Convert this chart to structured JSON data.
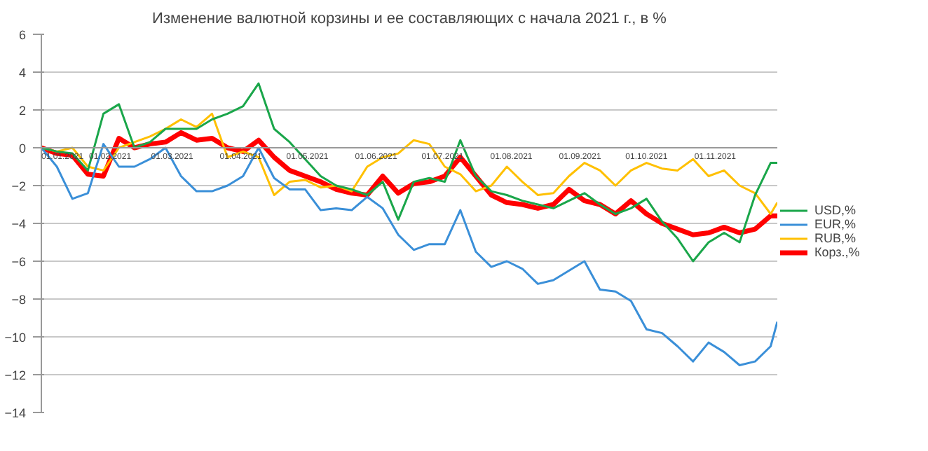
{
  "chart_data": {
    "type": "line",
    "title": "Изменение валютной корзины и ее составляющих с начала 2021 г., в %",
    "x": [
      "2021-01-01",
      "2021-01-08",
      "2021-01-15",
      "2021-01-22",
      "2021-01-29",
      "2021-02-05",
      "2021-02-12",
      "2021-02-19",
      "2021-02-26",
      "2021-03-05",
      "2021-03-12",
      "2021-03-19",
      "2021-03-26",
      "2021-04-02",
      "2021-04-09",
      "2021-04-16",
      "2021-04-23",
      "2021-04-30",
      "2021-05-07",
      "2021-05-14",
      "2021-05-21",
      "2021-05-28",
      "2021-06-04",
      "2021-06-11",
      "2021-06-18",
      "2021-06-25",
      "2021-07-02",
      "2021-07-09",
      "2021-07-16",
      "2021-07-23",
      "2021-07-30",
      "2021-08-06",
      "2021-08-13",
      "2021-08-20",
      "2021-08-27",
      "2021-09-03",
      "2021-09-10",
      "2021-09-17",
      "2021-09-24",
      "2021-10-01",
      "2021-10-08",
      "2021-10-15",
      "2021-10-22",
      "2021-10-29",
      "2021-11-05",
      "2021-11-12",
      "2021-11-19",
      "2021-11-26",
      "2021-11-29"
    ],
    "series": [
      {
        "name": "USD,%",
        "color": "#1aa64a",
        "values": [
          0,
          -0.2,
          -0.3,
          -1.2,
          1.8,
          2.3,
          0,
          0.3,
          1.0,
          1.0,
          1.0,
          1.5,
          1.8,
          2.2,
          3.4,
          1.0,
          0.3,
          -0.6,
          -1.5,
          -2.0,
          -2.2,
          -2.5,
          -1.8,
          -3.8,
          -1.8,
          -1.6,
          -1.8,
          0.4,
          -1.5,
          -2.3,
          -2.5,
          -2.8,
          -3.0,
          -3.2,
          -2.8,
          -2.4,
          -3.0,
          -3.5,
          -3.2,
          -2.7,
          -3.9,
          -4.8,
          -6.0,
          -5.0,
          -4.5,
          -5.0,
          -2.5,
          -0.8,
          -0.8
        ]
      },
      {
        "name": "EUR,%",
        "color": "#3a8fd8",
        "values": [
          0,
          -1.0,
          -2.7,
          -2.4,
          0.2,
          -1.0,
          -1.0,
          -0.6,
          0.0,
          -1.5,
          -2.3,
          -2.3,
          -2.0,
          -1.5,
          0.0,
          -1.6,
          -2.2,
          -2.2,
          -3.3,
          -3.2,
          -3.3,
          -2.6,
          -3.2,
          -4.6,
          -5.4,
          -5.1,
          -5.1,
          -3.3,
          -5.5,
          -6.3,
          -6.0,
          -6.4,
          -7.2,
          -7.0,
          -6.5,
          -6.0,
          -7.5,
          -7.6,
          -8.1,
          -9.6,
          -9.8,
          -10.5,
          -11.3,
          -10.3,
          -10.8,
          -11.5,
          -11.3,
          -10.5,
          -9.2
        ]
      },
      {
        "name": "RUB,%",
        "color": "#ffc000",
        "values": [
          0,
          -0.2,
          0,
          -1.0,
          -1.2,
          0.0,
          0.3,
          0.6,
          1.0,
          1.5,
          1.1,
          1.8,
          -0.5,
          -0.2,
          -0.5,
          -2.5,
          -1.8,
          -1.7,
          -2.1,
          -2.0,
          -2.3,
          -1.0,
          -0.5,
          -0.3,
          0.4,
          0.2,
          -1.0,
          -1.4,
          -2.3,
          -2.0,
          -1.0,
          -1.8,
          -2.5,
          -2.4,
          -1.5,
          -0.8,
          -1.2,
          -2.0,
          -1.2,
          -0.8,
          -1.1,
          -1.2,
          -0.6,
          -1.5,
          -1.2,
          -2.0,
          -2.4,
          -3.5,
          -2.9
        ]
      },
      {
        "name": "Корз.,%",
        "color": "#ff0000",
        "values": [
          0,
          -0.3,
          -0.4,
          -1.4,
          -1.5,
          0.5,
          0.0,
          0.2,
          0.3,
          0.8,
          0.4,
          0.5,
          0.0,
          -0.2,
          0.4,
          -0.5,
          -1.2,
          -1.5,
          -1.8,
          -2.2,
          -2.4,
          -2.5,
          -1.5,
          -2.4,
          -1.9,
          -1.8,
          -1.5,
          -0.5,
          -1.5,
          -2.5,
          -2.9,
          -3.0,
          -3.2,
          -3.0,
          -2.2,
          -2.8,
          -3.0,
          -3.5,
          -2.8,
          -3.5,
          -4.0,
          -4.3,
          -4.6,
          -4.5,
          -4.2,
          -4.5,
          -4.3,
          -3.6,
          -3.6
        ]
      }
    ],
    "xlim": [
      "2021-01-01",
      "2021-11-29"
    ],
    "xticks": [
      {
        "value": "2021-01-01",
        "label": "01.01.2021"
      },
      {
        "value": "2021-02-01",
        "label": "01.02.2021"
      },
      {
        "value": "2021-03-01",
        "label": "01.03.2021"
      },
      {
        "value": "2021-04-01",
        "label": "01.04.2021"
      },
      {
        "value": "2021-05-01",
        "label": "01.05.2021"
      },
      {
        "value": "2021-06-01",
        "label": "01.06.2021"
      },
      {
        "value": "2021-07-01",
        "label": "01.07.2021"
      },
      {
        "value": "2021-08-01",
        "label": "01.08.2021"
      },
      {
        "value": "2021-09-01",
        "label": "01.09.2021"
      },
      {
        "value": "2021-10-01",
        "label": "01.10.2021"
      },
      {
        "value": "2021-11-01",
        "label": "01.11.2021"
      }
    ],
    "ylim": [
      -14,
      6
    ],
    "yticks": [
      -14,
      -12,
      -10,
      -8,
      -6,
      -4,
      -2,
      0,
      2,
      4,
      6
    ],
    "grid": "y",
    "legend": "right",
    "marker": "none",
    "line_style": "solid"
  }
}
